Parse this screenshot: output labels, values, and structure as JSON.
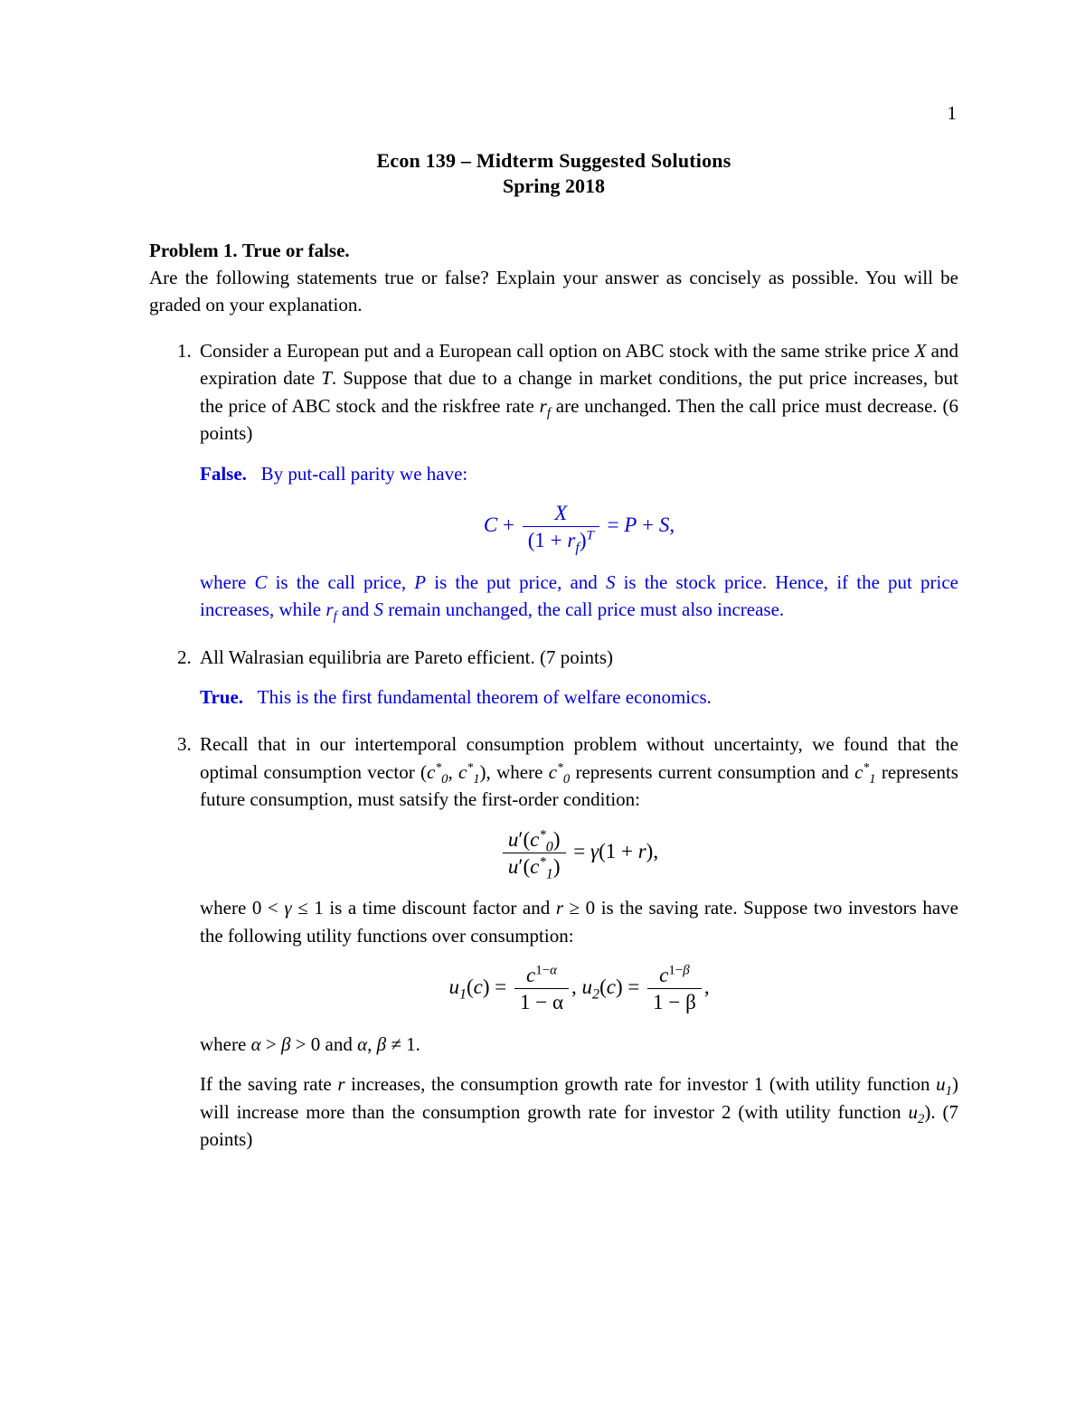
{
  "page_number": "1",
  "title_line1": "Econ 139 – Midterm Suggested Solutions",
  "title_line2": "Spring 2018",
  "problem_heading_prefix": "Problem 1.",
  "problem_heading_label": "True or false.",
  "intro": "Are the following statements true or false?  Explain your answer as concisely as possible. You will be graded on your explanation.",
  "colors": {
    "text": "#000000",
    "answer": "#0000d5",
    "background": "#ffffff"
  },
  "fonts": {
    "body_family": "Computer Modern serif",
    "body_size_pt": 16,
    "title_size_pt": 16,
    "title_weight": "bold"
  },
  "items": {
    "q1": {
      "text_prefix": "Consider a European put and a European call option on ABC stock with the same strike price ",
      "X": "X",
      "text_mid1": " and expiration date ",
      "T": "T",
      "text_mid2": ". Suppose that due to a change in market conditions, the put price increases, but the price of ABC stock and the riskfree rate ",
      "rf": "r",
      "rf_sub": "f",
      "text_end": " are unchanged. Then the call price must decrease. (6 points)",
      "answer_label": "False.",
      "answer_intro": "By put-call parity we have:",
      "equation": {
        "lhs_C": "C",
        "plus": " + ",
        "num": "X",
        "den_open": "(1 + ",
        "den_r": "r",
        "den_r_sub": "f",
        "den_close": ")",
        "den_exp": "T",
        "eq": " = ",
        "P": "P",
        "plus2": " + ",
        "S": "S",
        "comma": ","
      },
      "explain_prefix": "where ",
      "C": "C",
      "explain_mid1": " is the call price, ",
      "P": "P",
      "explain_mid2": " is the put price, and ",
      "S": "S",
      "explain_mid3": " is the stock price. Hence, if the put price increases, while ",
      "explain_rf": "r",
      "explain_rf_sub": "f",
      "explain_mid4": " and ",
      "explain_S2": "S",
      "explain_end": " remain unchanged, the call price must also increase."
    },
    "q2": {
      "text": "All Walrasian equilibria are Pareto efficient. (7 points)",
      "answer_label": "True.",
      "answer_text": "This is the first fundamental theorem of welfare economics."
    },
    "q3": {
      "text_prefix": "Recall that in our intertemporal consumption problem without uncertainty, we found that the optimal consumption vector (",
      "c0": "c",
      "c0_sub": "0",
      "c0_sup": "*",
      "comma1": ", ",
      "c1": "c",
      "c1_sub": "1",
      "c1_sup": "*",
      "text_mid1": "), where ",
      "c0b": "c",
      "c0b_sub": "0",
      "c0b_sup": "*",
      "text_mid2": " represents current consumption and ",
      "c1b": "c",
      "c1b_sub": "1",
      "c1b_sup": "*",
      "text_mid3": " represents future consumption, must satsify the first-order condition:",
      "eq1": {
        "num_u": "u",
        "num_prime": "′",
        "num_open": "(",
        "num_c": "c",
        "num_c_sub": "0",
        "num_c_sup": "*",
        "num_close": ")",
        "den_u": "u",
        "den_prime": "′",
        "den_open": "(",
        "den_c": "c",
        "den_c_sub": "1",
        "den_c_sup": "*",
        "den_close": ")",
        "eq": " = ",
        "gamma": "γ",
        "open": "(1 + ",
        "r": "r",
        "close": "),",
        "rm_close": ""
      },
      "text_mid4_prefix": "where 0 < ",
      "gamma": "γ",
      "text_mid4_mid": " ≤ 1 is a time discount factor and ",
      "r": "r",
      "text_mid4_end": " ≥ 0 is the saving rate. Suppose two investors have the following utility functions over consumption:",
      "eq2": {
        "u1": "u",
        "u1_sub": "1",
        "open1": "(",
        "c1": "c",
        "close1": ") = ",
        "frac1_num_c": "c",
        "frac1_num_exp": "1−α",
        "frac1_den": "1 − α",
        "comma": ",     ",
        "u2": "u",
        "u2_sub": "2",
        "open2": "(",
        "c2": "c",
        "close2": ") = ",
        "frac2_num_c": "c",
        "frac2_num_exp": "1−β",
        "frac2_den": "1 − β",
        "end": ","
      },
      "text_where_prefix": "where ",
      "alpha": "α",
      "gt": " > ",
      "beta": "β",
      "text_where_mid": " > 0 and ",
      "alpha2": "α",
      "comma2": ", ",
      "beta2": "β",
      "neq": " ≠ 1.",
      "final_prefix": "If the saving rate ",
      "final_r": "r",
      "final_mid1": " increases, the consumption growth rate for investor 1 (with utility function ",
      "final_u1": "u",
      "final_u1_sub": "1",
      "final_mid2": ") will increase more than the consumption growth rate for investor 2 (with utility function ",
      "final_u2": "u",
      "final_u2_sub": "2",
      "final_end": "). (7 points)"
    }
  }
}
